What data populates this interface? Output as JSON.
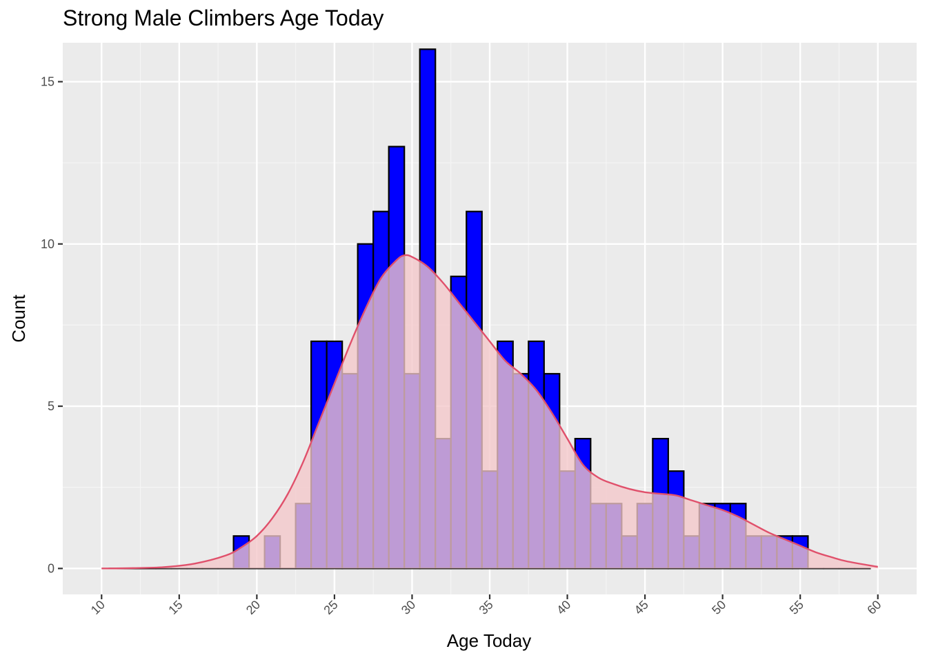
{
  "chart_data": {
    "type": "bar",
    "title": "Strong Male Climbers Age Today",
    "xlabel": "Age Today",
    "ylabel": "Count",
    "xlim": [
      7.5,
      62.5
    ],
    "ylim": [
      -0.8,
      16.2
    ],
    "x_ticks": [
      10,
      15,
      20,
      25,
      30,
      35,
      40,
      45,
      50,
      55,
      60
    ],
    "y_ticks": [
      0,
      5,
      10,
      15
    ],
    "grid": true,
    "legend": "none",
    "histogram": {
      "bin_width": 1,
      "bin_centers": [
        11,
        12,
        13,
        14,
        15,
        16,
        17,
        18,
        19,
        20,
        21,
        22,
        23,
        24,
        25,
        26,
        27,
        28,
        29,
        30,
        31,
        32,
        33,
        34,
        35,
        36,
        37,
        38,
        39,
        40,
        41,
        42,
        43,
        44,
        45,
        46,
        47,
        48,
        49,
        50,
        51,
        52,
        53,
        54,
        55,
        56,
        57,
        58,
        59
      ],
      "counts": [
        0,
        0,
        0,
        0,
        0,
        0,
        0,
        0,
        1,
        0,
        1,
        0,
        2,
        7,
        7,
        6,
        10,
        11,
        13,
        6,
        16,
        4,
        9,
        11,
        3,
        7,
        6,
        7,
        6,
        3,
        4,
        2,
        2,
        1,
        2,
        4,
        3,
        1,
        2,
        2,
        2,
        1,
        1,
        1,
        1,
        0,
        0,
        0,
        0
      ],
      "fill": "#0000ff",
      "border": "#000000"
    },
    "density": {
      "x": [
        10,
        12,
        14,
        16,
        18,
        19,
        20,
        21,
        22,
        23,
        24,
        25,
        26,
        27,
        28,
        29,
        29.5,
        30,
        31,
        32,
        33,
        34,
        35,
        36,
        37,
        38,
        39,
        40,
        41,
        42,
        43,
        44,
        45,
        46,
        47,
        48,
        49,
        50,
        51,
        52,
        53,
        54,
        55,
        56,
        57,
        58,
        60
      ],
      "y": [
        0,
        0.01,
        0.04,
        0.15,
        0.4,
        0.65,
        1.0,
        1.55,
        2.3,
        3.3,
        4.5,
        5.7,
        6.9,
        8.0,
        8.95,
        9.5,
        9.65,
        9.6,
        9.3,
        8.8,
        8.2,
        7.6,
        7.0,
        6.4,
        6.0,
        5.5,
        4.8,
        4.0,
        3.2,
        2.8,
        2.6,
        2.45,
        2.35,
        2.3,
        2.25,
        2.1,
        1.95,
        1.8,
        1.6,
        1.35,
        1.1,
        0.9,
        0.7,
        0.5,
        0.35,
        0.22,
        0.05
      ],
      "line_color": "#e0506b",
      "fill_color": "#f4c6c9"
    }
  },
  "colors": {
    "panel_bg": "#ebebeb",
    "grid_major": "#ffffff",
    "grid_minor": "#f5f5f5"
  }
}
